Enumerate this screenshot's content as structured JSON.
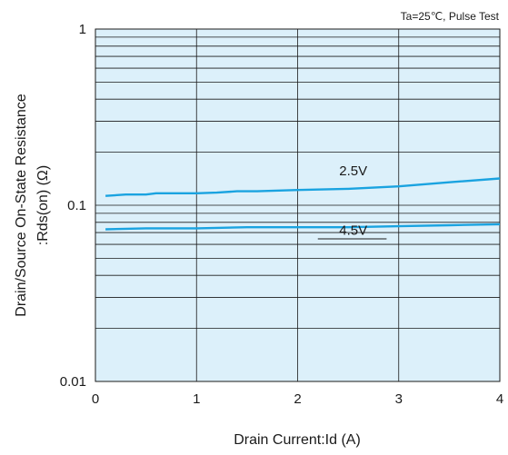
{
  "chart_data": {
    "type": "line",
    "note": "Ta=25℃, Pulse Test",
    "xlabel": "Drain Current:Id  (A)",
    "ylabel_line1": "Drain/Source On-State Resistance",
    "ylabel_line2": ":Rds(on) (Ω)",
    "x_scale": "linear",
    "y_scale": "log",
    "xlim": [
      0,
      4
    ],
    "ylim": [
      0.01,
      1
    ],
    "x_ticks": [
      "0",
      "1",
      "2",
      "3",
      "4"
    ],
    "y_ticks": [
      "0.01",
      "0.1",
      "1"
    ],
    "grid": true,
    "series": [
      {
        "name": "2.5V",
        "x": [
          0.1,
          0.3,
          0.5,
          0.6,
          0.8,
          1.0,
          1.2,
          1.4,
          1.6,
          2.0,
          2.5,
          3.0,
          3.5,
          4.0
        ],
        "y": [
          0.113,
          0.115,
          0.115,
          0.117,
          0.117,
          0.117,
          0.118,
          0.12,
          0.12,
          0.122,
          0.124,
          0.128,
          0.135,
          0.142
        ]
      },
      {
        "name": "4.5V",
        "x": [
          0.1,
          0.5,
          1.0,
          1.5,
          2.0,
          2.5,
          3.0,
          3.5,
          4.0
        ],
        "y": [
          0.073,
          0.074,
          0.074,
          0.075,
          0.075,
          0.075,
          0.076,
          0.077,
          0.078
        ]
      }
    ],
    "colors": {
      "plot_background": "#dcf0fa",
      "line": "#1aa3e0",
      "grid": "#1a1a1a"
    }
  }
}
